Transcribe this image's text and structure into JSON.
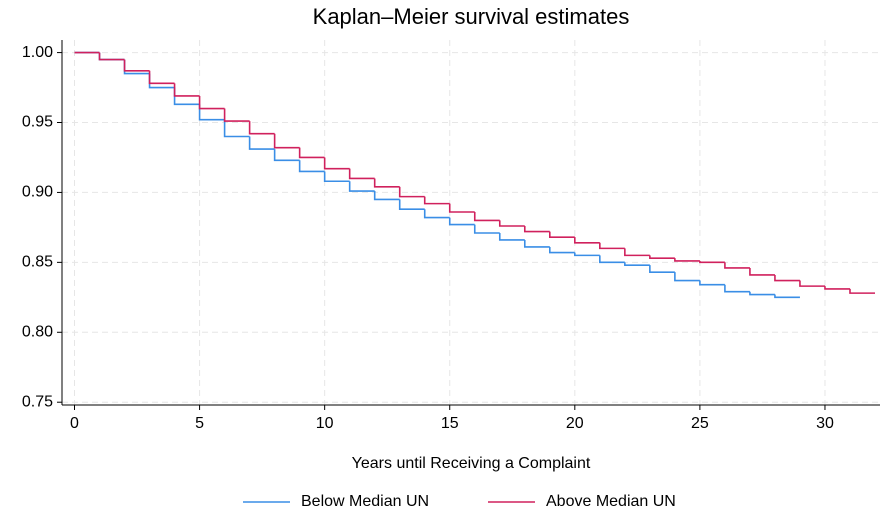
{
  "chart_data": {
    "type": "step",
    "title": "Kaplan–Meier survival estimates",
    "xlabel": "Years until Receiving a Complaint",
    "xlim": [
      -0.5,
      32.2
    ],
    "ylim": [
      0.748,
      1.009
    ],
    "xticks": [
      0,
      5,
      10,
      15,
      20,
      25,
      30
    ],
    "yticks": [
      {
        "value": 0.75,
        "label": "0.75"
      },
      {
        "value": 0.8,
        "label": "0.80"
      },
      {
        "value": 0.85,
        "label": "0.85"
      },
      {
        "value": 0.9,
        "label": "0.90"
      },
      {
        "value": 0.95,
        "label": "0.95"
      },
      {
        "value": 1.0,
        "label": "1.00"
      }
    ],
    "grid": true,
    "legend": "bottom",
    "series": [
      {
        "name": "Below Median UN",
        "color": "#3a8ee6",
        "x": [
          0,
          1,
          2,
          3,
          4,
          5,
          6,
          7,
          8,
          9,
          10,
          11,
          12,
          13,
          14,
          15,
          16,
          17,
          18,
          19,
          20,
          21,
          22,
          23,
          24,
          25,
          26,
          27,
          28,
          29
        ],
        "values": [
          1.0,
          0.995,
          0.985,
          0.975,
          0.963,
          0.952,
          0.94,
          0.931,
          0.923,
          0.915,
          0.908,
          0.901,
          0.895,
          0.888,
          0.882,
          0.877,
          0.871,
          0.866,
          0.861,
          0.857,
          0.855,
          0.85,
          0.848,
          0.843,
          0.837,
          0.834,
          0.829,
          0.827,
          0.825,
          0.825
        ]
      },
      {
        "name": "Above Median UN",
        "color": "#d0215d",
        "x": [
          0,
          1,
          2,
          3,
          4,
          5,
          6,
          7,
          8,
          9,
          10,
          11,
          12,
          13,
          14,
          15,
          16,
          17,
          18,
          19,
          20,
          21,
          22,
          23,
          24,
          25,
          26,
          27,
          28,
          29,
          30,
          31,
          32
        ],
        "values": [
          1.0,
          0.995,
          0.987,
          0.978,
          0.969,
          0.96,
          0.951,
          0.942,
          0.932,
          0.925,
          0.917,
          0.91,
          0.904,
          0.897,
          0.892,
          0.886,
          0.88,
          0.876,
          0.872,
          0.868,
          0.864,
          0.86,
          0.855,
          0.853,
          0.851,
          0.85,
          0.846,
          0.841,
          0.837,
          0.833,
          0.831,
          0.828,
          0.828
        ]
      }
    ]
  }
}
